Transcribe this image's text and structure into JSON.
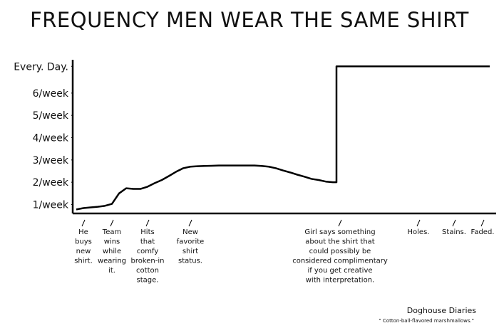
{
  "chart_data": {
    "type": "line",
    "title": "FREQUENCY MEN WEAR THE SAME SHIRT",
    "categories": [
      null,
      "He\nbuys\nnew\nshirt.",
      null,
      null,
      null,
      "Team\nwins\nwhile\nwearing\nit.",
      null,
      null,
      null,
      null,
      "Hits\nthat\ncomfy\nbroken-in\ncotton\nstage.",
      null,
      null,
      null,
      null,
      null,
      "New\nfavorite\nshirt\nstatus.",
      null,
      null,
      null,
      null,
      null,
      null,
      null,
      null,
      null,
      null,
      null,
      null,
      null,
      null,
      null,
      null,
      null,
      null,
      null,
      null,
      "Girl says something\nabout the shirt that\ncould possibly be\nconsidered complimentary\nif you get creative\nwith interpretation.",
      null,
      null,
      null,
      null,
      null,
      null,
      null,
      null,
      null,
      null,
      "Holes.",
      null,
      null,
      null,
      null,
      "Stains.",
      null,
      null,
      null,
      "Faded.",
      null
    ],
    "values": [
      0.78,
      0.84,
      0.87,
      0.9,
      0.94,
      1.03,
      1.5,
      1.73,
      1.7,
      1.7,
      1.8,
      1.96,
      2.1,
      2.28,
      2.47,
      2.63,
      2.7,
      2.72,
      2.73,
      2.74,
      2.75,
      2.75,
      2.75,
      2.75,
      2.75,
      2.75,
      2.73,
      2.7,
      2.63,
      2.53,
      2.44,
      2.34,
      2.25,
      2.15,
      2.1,
      2.03,
      2.0,
      7.2,
      7.2,
      7.2,
      7.2,
      7.2,
      7.2,
      7.2,
      7.2,
      7.2,
      7.2,
      7.2,
      7.2,
      7.2,
      7.2,
      7.2,
      7.2,
      7.2,
      7.2,
      7.2,
      7.2,
      7.2,
      7.2
    ],
    "color": "#000000",
    "ylim": [
      0.6,
      7.4
    ],
    "yticks": [
      {
        "value": 1,
        "label": "1/week"
      },
      {
        "value": 2,
        "label": "2/week"
      },
      {
        "value": 3,
        "label": "3/week"
      },
      {
        "value": 4,
        "label": "4/week"
      },
      {
        "value": 5,
        "label": "5/week"
      },
      {
        "value": 6,
        "label": "6/week"
      },
      {
        "value": 7.2,
        "label": "Every. Day."
      }
    ],
    "credit": "Doghouse Diaries",
    "caption": "\" Cotton-ball-flavored marshmallows.\""
  }
}
